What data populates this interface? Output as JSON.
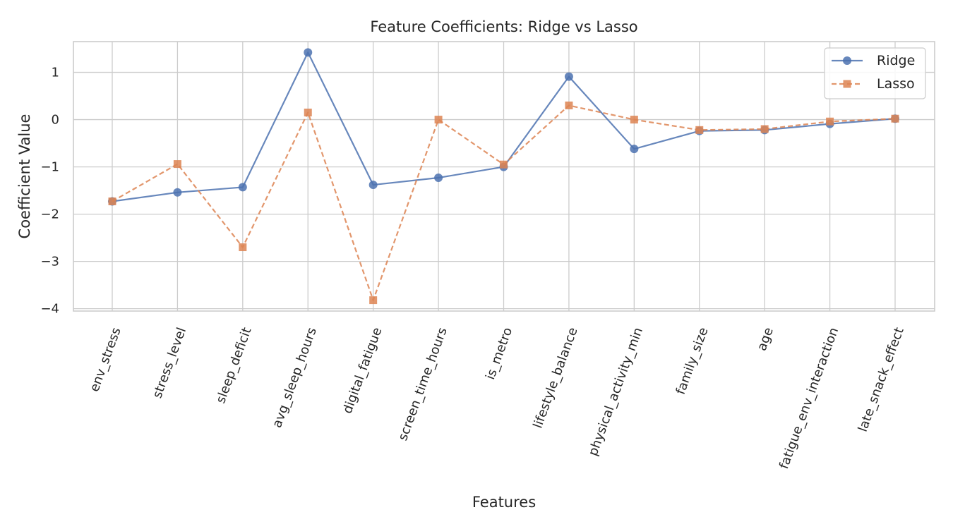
{
  "chart_data": {
    "type": "line",
    "title": "Feature Coefficients: Ridge vs Lasso",
    "xlabel": "Features",
    "ylabel": "Coefficient Value",
    "categories": [
      "env_stress",
      "stress_level",
      "sleep_deficit",
      "avg_sleep_hours",
      "digital_fatigue",
      "screen_time_hours",
      "is_metro",
      "lifestyle_balance",
      "physical_activity_min",
      "family_size",
      "age",
      "fatigue_env_interaction",
      "late_snack_effect"
    ],
    "ylim": [
      -4.05,
      1.65
    ],
    "yticks": [
      1,
      0,
      -1,
      -2,
      -3,
      -4
    ],
    "ytick_labels": [
      "1",
      "0",
      "−1",
      "−2",
      "−3",
      "−4"
    ],
    "grid": true,
    "legend": "top-right",
    "series": [
      {
        "name": "Ridge",
        "color": "#4c72b0",
        "marker": "circle",
        "linestyle": "solid",
        "values": [
          -1.73,
          -1.54,
          -1.43,
          1.42,
          -1.38,
          -1.23,
          -1.0,
          0.91,
          -0.62,
          -0.24,
          -0.22,
          -0.09,
          0.02
        ]
      },
      {
        "name": "Lasso",
        "color": "#dd8452",
        "marker": "square",
        "linestyle": "dashed",
        "values": [
          -1.73,
          -0.94,
          -2.7,
          0.15,
          -3.82,
          0.0,
          -0.95,
          0.3,
          0.0,
          -0.22,
          -0.2,
          -0.04,
          0.02
        ]
      }
    ]
  }
}
